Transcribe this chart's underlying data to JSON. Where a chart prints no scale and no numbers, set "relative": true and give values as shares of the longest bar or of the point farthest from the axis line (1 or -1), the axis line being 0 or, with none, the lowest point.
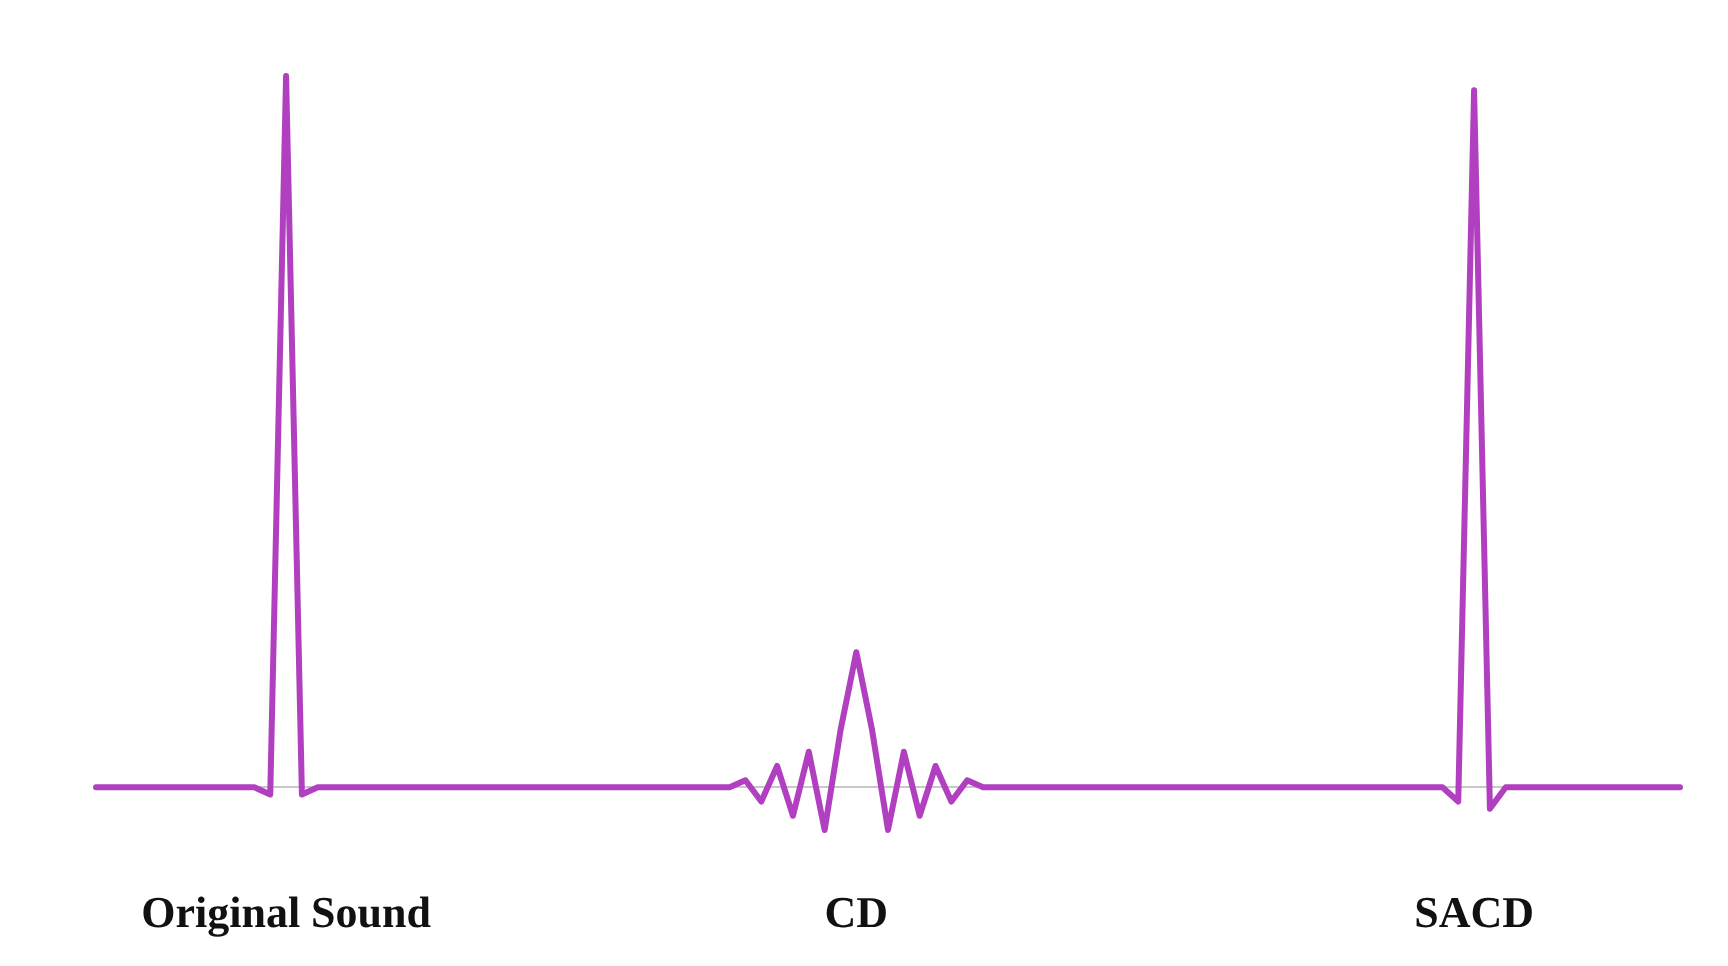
{
  "chart_data": {
    "type": "line",
    "relative": true,
    "categories": [
      null,
      null,
      null,
      null,
      null,
      null,
      null,
      null,
      null,
      null,
      null,
      null,
      "Original Sound",
      null,
      null,
      null,
      null,
      null,
      null,
      null,
      null,
      null,
      null,
      null,
      null,
      null,
      null,
      null,
      null,
      null,
      null,
      null,
      null,
      null,
      null,
      null,
      null,
      null,
      null,
      null,
      null,
      null,
      null,
      null,
      null,
      null,
      null,
      null,
      "CD",
      null,
      null,
      null,
      null,
      null,
      null,
      null,
      null,
      null,
      null,
      null,
      null,
      null,
      null,
      null,
      null,
      null,
      null,
      null,
      null,
      null,
      null,
      null,
      null,
      null,
      null,
      null,
      null,
      null,
      null,
      null,
      null,
      null,
      null,
      null,
      null,
      null,
      null,
      "SACD",
      null,
      null,
      null,
      null,
      null,
      null,
      null,
      null,
      null,
      null,
      null,
      null,
      null
    ],
    "series": [
      {
        "color": "#b040c0",
        "values": [
          0,
          0,
          0,
          0,
          0,
          0,
          0,
          0,
          0,
          0,
          0,
          -0.01,
          1,
          -0.01,
          0,
          0,
          0,
          0,
          0,
          0,
          0,
          0,
          0,
          0,
          0,
          0,
          0,
          0,
          0,
          0,
          0,
          0,
          0,
          0,
          0,
          0,
          0,
          0,
          0,
          0,
          0,
          0.01,
          -0.02,
          0.03,
          -0.04,
          0.05,
          -0.06,
          0.08,
          0.19,
          0.08,
          -0.06,
          0.05,
          -0.04,
          0.03,
          -0.02,
          0.01,
          0,
          0,
          0,
          0,
          0,
          0,
          0,
          0,
          0,
          0,
          0,
          0,
          0,
          0,
          0,
          0,
          0,
          0,
          0,
          0,
          0,
          0,
          0,
          0,
          0,
          0,
          0,
          0,
          0,
          0,
          -0.02,
          0.98,
          -0.03,
          0,
          0,
          0,
          0,
          0,
          0,
          0,
          0,
          0,
          0,
          0,
          0
        ]
      }
    ]
  }
}
